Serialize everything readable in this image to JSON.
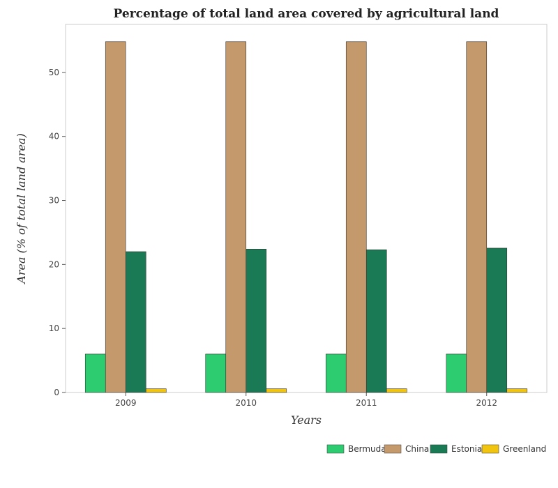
{
  "chart_data": {
    "type": "bar",
    "title": "Percentage of total land area covered by agricultural land",
    "xlabel": "Years",
    "ylabel": "Area (% of total land area)",
    "categories": [
      "2009",
      "2010",
      "2011",
      "2012"
    ],
    "ylim": [
      0,
      57.5
    ],
    "yticks": [
      0,
      10,
      20,
      30,
      40,
      50
    ],
    "grid": false,
    "legend": "bottom-right",
    "series": [
      {
        "name": "Bermuda",
        "color": "#2ecc71",
        "values": [
          6.0,
          6.0,
          6.0,
          6.0
        ]
      },
      {
        "name": "China",
        "color": "#c49a6c",
        "values": [
          54.8,
          54.8,
          54.8,
          54.8
        ]
      },
      {
        "name": "Estonia",
        "color": "#1a7a55",
        "values": [
          22.0,
          22.4,
          22.3,
          22.55
        ]
      },
      {
        "name": "Greenland",
        "color": "#f1c40f",
        "values": [
          0.58,
          0.58,
          0.58,
          0.58
        ]
      }
    ]
  }
}
